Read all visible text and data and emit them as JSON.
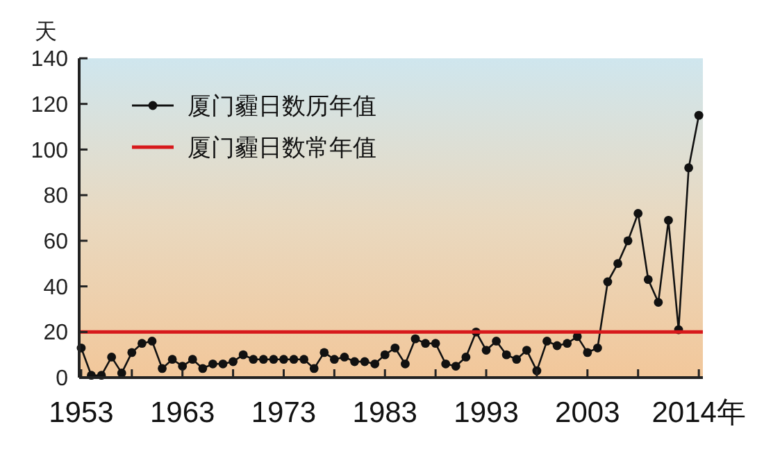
{
  "chart_data": {
    "type": "line",
    "ylabel": "天",
    "xlim": [
      1952.8,
      2014.4
    ],
    "xticks": [
      {
        "value": 1953,
        "label": "1953"
      },
      {
        "value": 1958,
        "label": null
      },
      {
        "value": 1963,
        "label": "1963"
      },
      {
        "value": 1968,
        "label": null
      },
      {
        "value": 1973,
        "label": "1973"
      },
      {
        "value": 1978,
        "label": null
      },
      {
        "value": 1983,
        "label": "1983"
      },
      {
        "value": 1988,
        "label": null
      },
      {
        "value": 1993,
        "label": "1993"
      },
      {
        "value": 1998,
        "label": null
      },
      {
        "value": 2003,
        "label": "2003"
      },
      {
        "value": 2008,
        "label": null
      },
      {
        "value": 2014,
        "label": "2014年"
      }
    ],
    "ylim": [
      0,
      140
    ],
    "yticks": [
      0,
      20,
      40,
      60,
      80,
      100,
      120,
      140
    ],
    "grid": false,
    "legend": "top left",
    "series": [
      {
        "name": "厦门霾日数历年值",
        "color": "#111111",
        "marker": "circle",
        "x": [
          1953,
          1954,
          1955,
          1956,
          1957,
          1958,
          1959,
          1960,
          1961,
          1962,
          1963,
          1964,
          1965,
          1966,
          1967,
          1968,
          1969,
          1970,
          1971,
          1972,
          1973,
          1974,
          1975,
          1976,
          1977,
          1978,
          1979,
          1980,
          1981,
          1982,
          1983,
          1984,
          1985,
          1986,
          1987,
          1988,
          1989,
          1990,
          1991,
          1992,
          1993,
          1994,
          1995,
          1996,
          1997,
          1998,
          1999,
          2000,
          2001,
          2002,
          2003,
          2004,
          2005,
          2006,
          2007,
          2008,
          2009,
          2010,
          2011,
          2012,
          2013,
          2014
        ],
        "values": [
          13,
          1,
          1,
          9,
          2,
          11,
          15,
          16,
          4,
          8,
          5,
          8,
          4,
          6,
          6,
          7,
          10,
          8,
          8,
          8,
          8,
          8,
          8,
          4,
          11,
          8,
          9,
          7,
          7,
          6,
          10,
          13,
          6,
          17,
          15,
          15,
          6,
          5,
          9,
          20,
          12,
          16,
          10,
          8,
          12,
          3,
          16,
          14,
          15,
          18,
          11,
          13,
          42,
          50,
          60,
          72,
          43,
          33,
          69,
          21,
          92,
          115
        ]
      },
      {
        "name": "厦门霾日数常年值",
        "color": "#d7191c",
        "marker": "none",
        "x": [
          1952.8,
          2014.4
        ],
        "values": [
          20,
          20
        ]
      }
    ]
  }
}
